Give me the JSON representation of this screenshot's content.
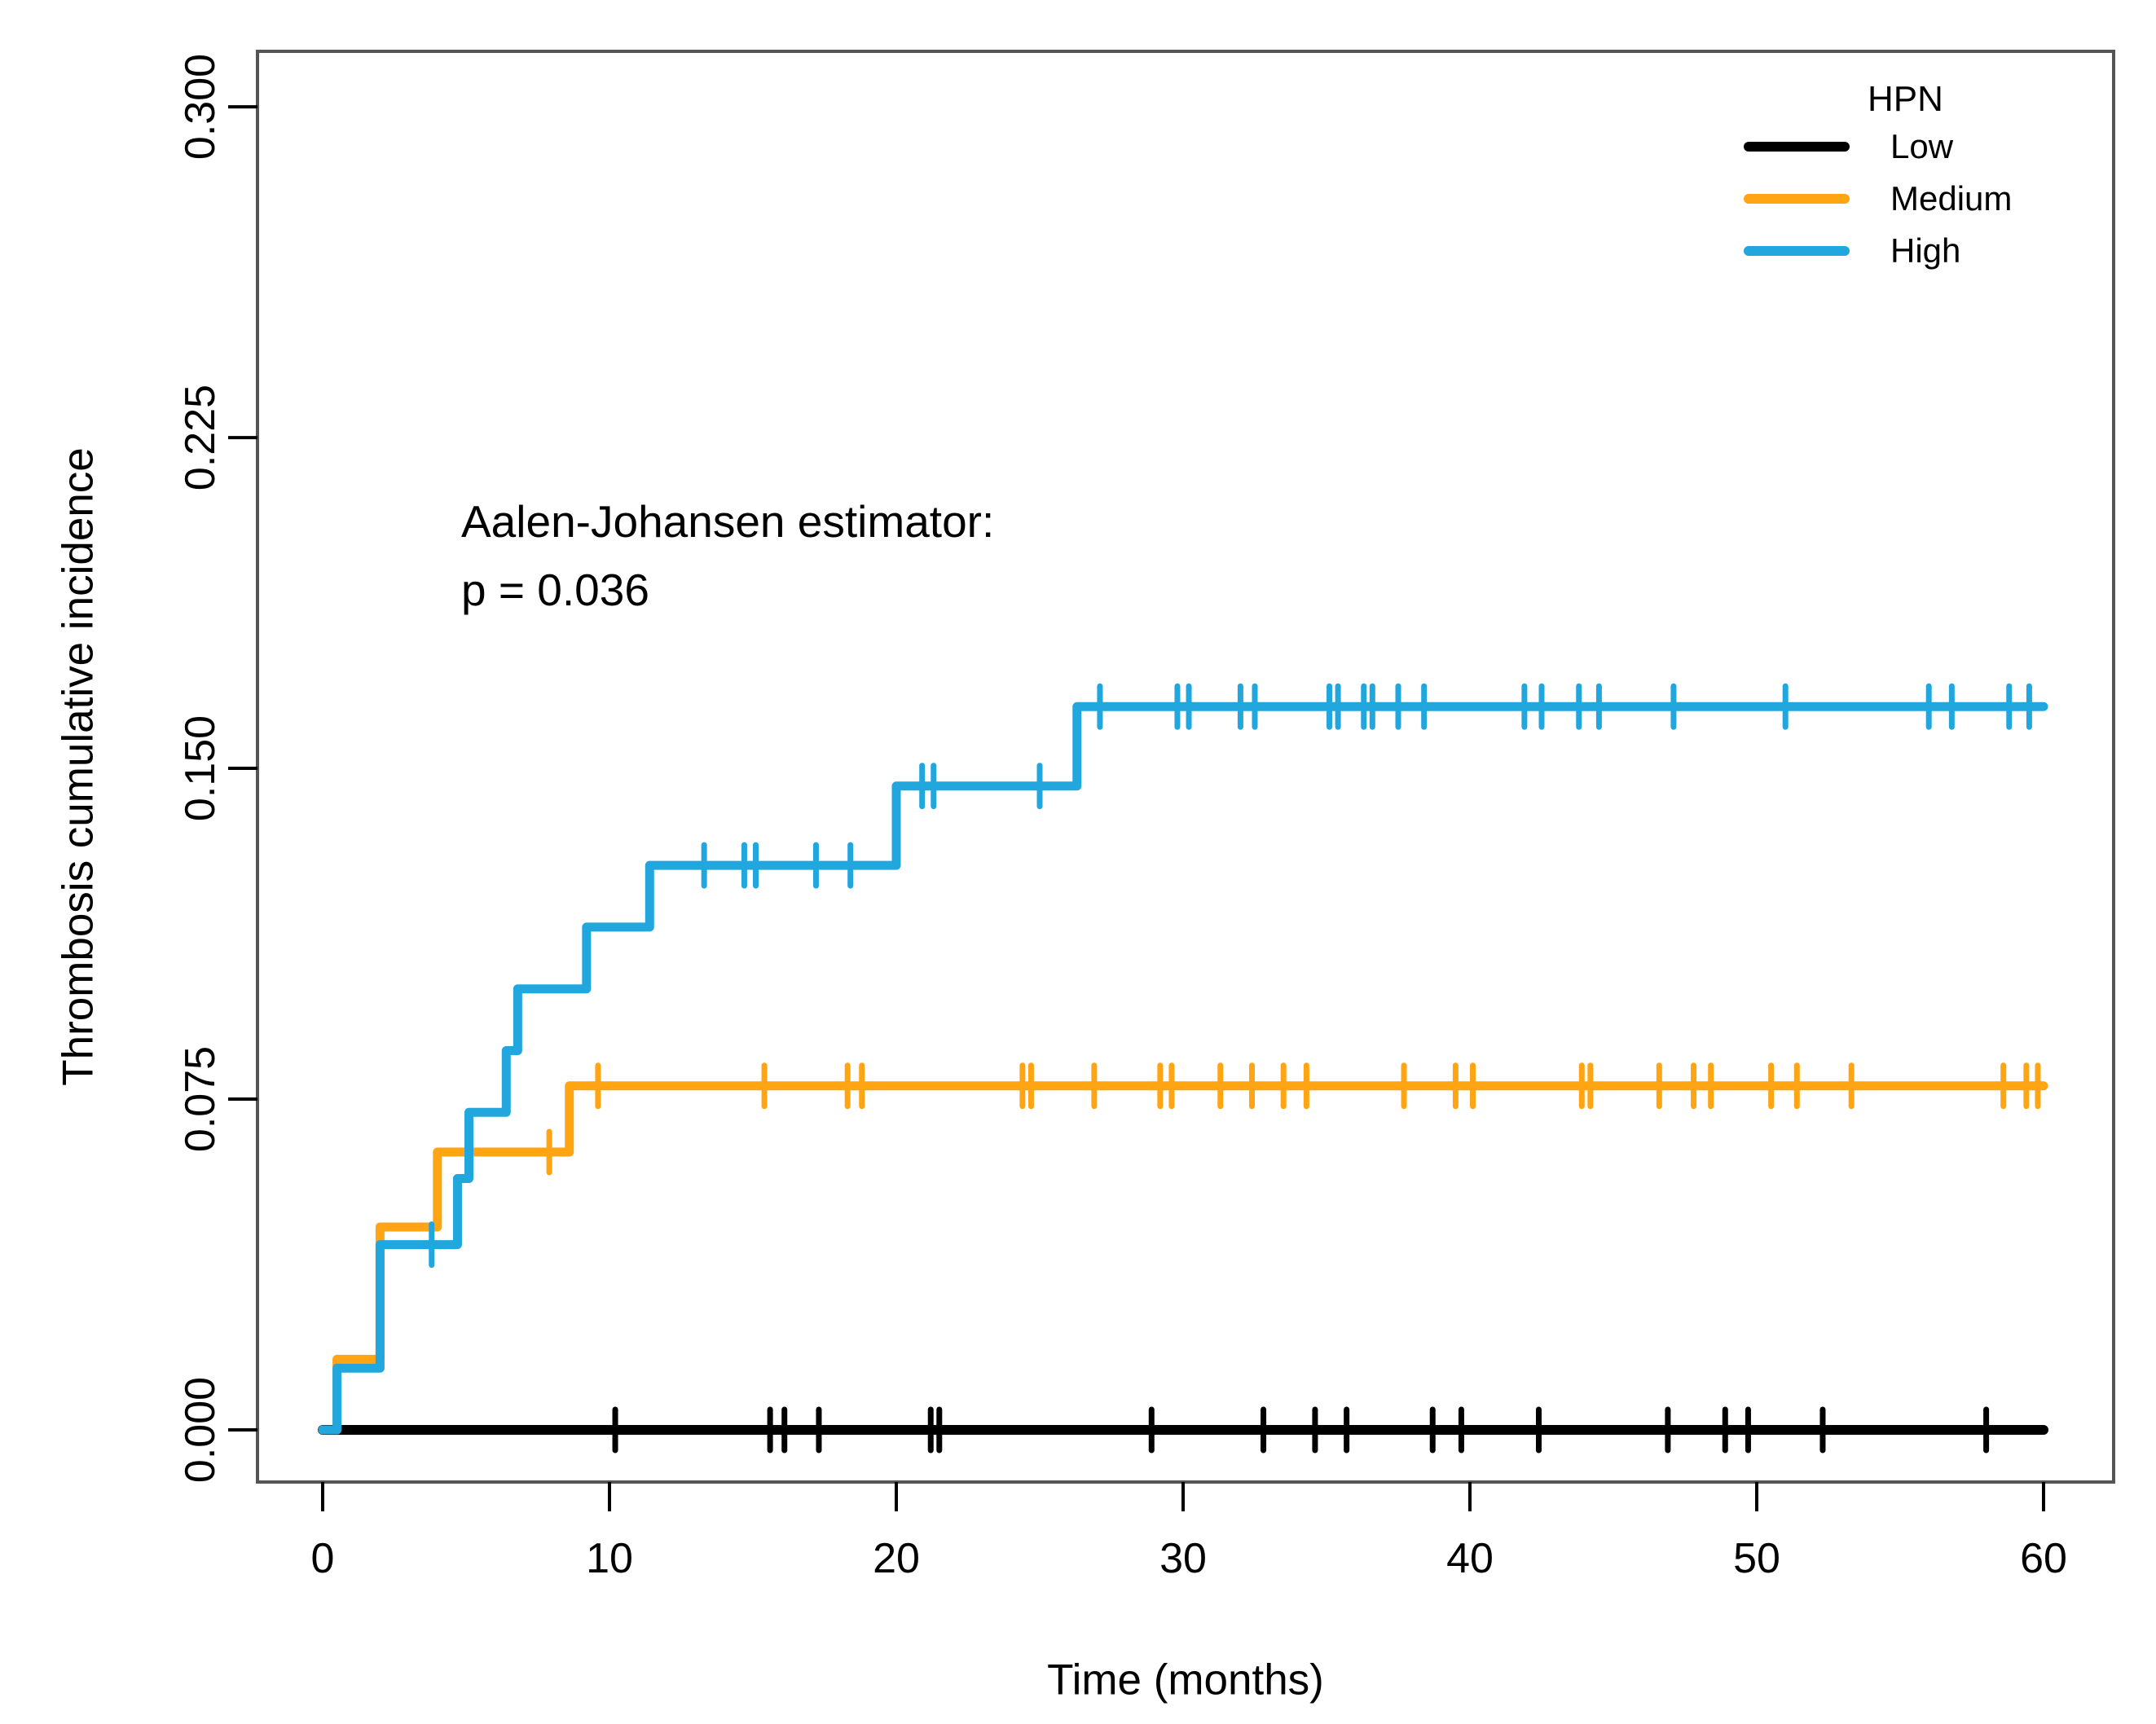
{
  "figure": {
    "background": "#ffffff",
    "frame_color": "#555555"
  },
  "chart_data": {
    "type": "line",
    "subtype": "step-function-cumulative-incidence",
    "title": "",
    "xlabel": "Time (months)",
    "ylabel": "Thrombosis cumulative incidence",
    "xlim": [
      0,
      60
    ],
    "ylim": [
      0,
      0.3
    ],
    "x_ticks": [
      0,
      10,
      20,
      30,
      40,
      50,
      60
    ],
    "y_ticks": [
      "0.000",
      "0.075",
      "0.150",
      "0.225",
      "0.300"
    ],
    "grid": false,
    "legend": {
      "title": "HPN",
      "position": "top-right",
      "entries": [
        "Low",
        "Medium",
        "High"
      ]
    },
    "annotation": {
      "line1": "Aalen-Johansen estimator:",
      "line2": "p = 0.036"
    },
    "series": [
      {
        "name": "Low",
        "color": "#000000",
        "steps": [
          [
            0,
            0
          ]
        ],
        "censor_times": [
          10.2,
          15.6,
          16.1,
          17.3,
          21.2,
          21.5,
          28.9,
          32.8,
          34.6,
          35.7,
          38.7,
          39.7,
          42.4,
          46.9,
          48.9,
          49.7,
          52.3,
          58.0
        ]
      },
      {
        "name": "Medium",
        "color": "#FFA412",
        "steps": [
          [
            0,
            0
          ],
          [
            0.5,
            0.016
          ],
          [
            2.0,
            0.046
          ],
          [
            4.0,
            0.063
          ],
          [
            8.6,
            0.078
          ]
        ],
        "censor_times": [
          7.9,
          9.6,
          15.4,
          18.3,
          18.8,
          24.4,
          24.7,
          26.9,
          29.2,
          29.6,
          31.3,
          32.4,
          33.5,
          34.3,
          37.7,
          39.5,
          40.1,
          43.9,
          44.2,
          46.6,
          47.8,
          48.4,
          50.5,
          51.4,
          53.3,
          58.6,
          59.4,
          59.8
        ]
      },
      {
        "name": "High",
        "color": "#21A7DE",
        "steps": [
          [
            0,
            0
          ],
          [
            0.5,
            0.014
          ],
          [
            2.0,
            0.042
          ],
          [
            4.7,
            0.057
          ],
          [
            5.1,
            0.072
          ],
          [
            6.4,
            0.086
          ],
          [
            6.8,
            0.1
          ],
          [
            9.2,
            0.114
          ],
          [
            11.4,
            0.128
          ],
          [
            20.0,
            0.146
          ],
          [
            26.3,
            0.164
          ]
        ],
        "censor_times": [
          3.8,
          13.3,
          14.7,
          15.1,
          17.2,
          18.4,
          20.9,
          21.3,
          25.0,
          27.1,
          29.8,
          30.2,
          32.0,
          32.5,
          35.1,
          35.4,
          36.3,
          36.6,
          37.5,
          38.4,
          41.9,
          42.5,
          43.8,
          44.5,
          47.1,
          51.0,
          56.0,
          56.8,
          58.8,
          59.5
        ]
      }
    ]
  }
}
